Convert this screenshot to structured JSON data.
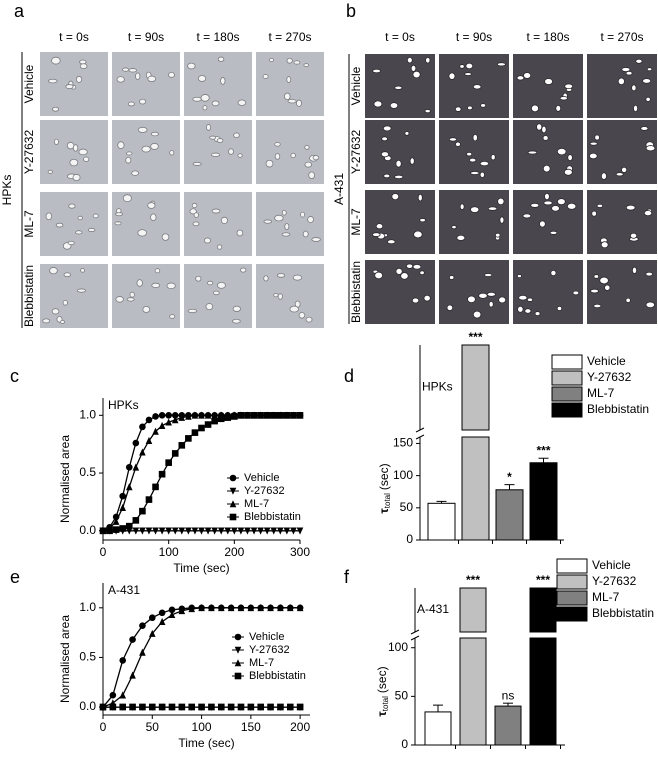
{
  "image_panels": [
    {
      "label": "a",
      "group": "HPKs",
      "columns": [
        "t = 0s",
        "t = 90s",
        "t = 180s",
        "t = 270s"
      ],
      "rows": [
        "Vehicle",
        "Y-27632",
        "ML-7",
        "Blebbistatin"
      ]
    },
    {
      "label": "b",
      "group": "A-431",
      "columns": [
        "t = 0s",
        "t = 90s",
        "t = 180s",
        "t = 270s"
      ],
      "rows": [
        "Vehicle",
        "Y-27632",
        "ML-7",
        "Blebbistatin"
      ]
    }
  ],
  "chart_data": [
    {
      "type": "line",
      "panel_label": "c",
      "title": "HPKs",
      "xlabel": "Time (sec)",
      "ylabel": "Normalised area",
      "x": [
        0,
        10,
        20,
        30,
        40,
        50,
        60,
        70,
        80,
        90,
        100,
        110,
        120,
        130,
        140,
        150,
        160,
        170,
        180,
        190,
        200,
        210,
        220,
        230,
        240,
        250,
        260,
        270,
        280,
        290,
        300
      ],
      "xlim": [
        0,
        300
      ],
      "xticks": [
        0,
        100,
        200,
        300
      ],
      "ylim": [
        -0.08,
        1.15
      ],
      "yticks": [
        {
          "value": 0,
          "label": "0.0"
        },
        {
          "value": 0.5,
          "label": "0.5"
        },
        {
          "value": 1,
          "label": "1.0"
        }
      ],
      "series": [
        {
          "name": "Vehicle",
          "marker": "circle",
          "color": "#000000",
          "values": [
            0,
            0.03,
            0.12,
            0.3,
            0.55,
            0.76,
            0.9,
            0.96,
            0.99,
            1,
            1,
            1,
            1,
            1,
            1,
            1,
            1,
            1,
            1,
            1,
            1,
            1,
            1,
            1,
            1,
            1,
            1,
            1,
            1,
            1,
            1
          ]
        },
        {
          "name": "Y-27632",
          "marker": "triangle-down",
          "color": "#000000",
          "values": [
            0,
            0,
            0,
            0,
            0,
            0,
            0,
            0,
            0,
            0,
            0,
            0,
            0,
            0,
            0,
            0,
            0,
            0,
            0,
            0,
            0,
            0,
            0,
            0,
            0,
            0,
            0,
            0,
            0,
            0,
            0
          ]
        },
        {
          "name": "ML-7",
          "marker": "triangle",
          "color": "#000000",
          "values": [
            0,
            0.02,
            0.08,
            0.2,
            0.38,
            0.55,
            0.68,
            0.78,
            0.86,
            0.91,
            0.94,
            0.96,
            0.98,
            0.99,
            1,
            1,
            1,
            1,
            1,
            1,
            1,
            1,
            1,
            1,
            1,
            1,
            1,
            1,
            1,
            1,
            1
          ]
        },
        {
          "name": "Blebbistatin",
          "marker": "square",
          "color": "#000000",
          "values": [
            0,
            0,
            0.01,
            0.02,
            0.04,
            0.09,
            0.17,
            0.27,
            0.38,
            0.49,
            0.59,
            0.67,
            0.74,
            0.8,
            0.85,
            0.89,
            0.92,
            0.95,
            0.97,
            0.98,
            0.99,
            1,
            1,
            1,
            1,
            1,
            1,
            1,
            1,
            1,
            1
          ]
        }
      ]
    },
    {
      "type": "broken-bar",
      "panel_label": "d",
      "title": "HPKs",
      "ylabel_symbol": "τ",
      "ylabel_sub": "total",
      "ylabel_unit": "(sec)",
      "categories": [
        "Vehicle",
        "Y-27632",
        "ML-7",
        "Blebbistatin"
      ],
      "colors": [
        "#ffffff",
        "#c0c0c0",
        "#808080",
        "#000000"
      ],
      "values": [
        57,
        null,
        78,
        120
      ],
      "errors": [
        3,
        null,
        8,
        7
      ],
      "significance": [
        null,
        "***",
        "*",
        "***"
      ],
      "ylim": [
        0,
        160
      ],
      "yticks": [
        0,
        50,
        100,
        150
      ]
    },
    {
      "type": "line",
      "panel_label": "e",
      "title": "A-431",
      "xlabel": "Time (sec)",
      "ylabel": "Normalised area",
      "x": [
        0,
        10,
        20,
        30,
        40,
        50,
        60,
        70,
        80,
        90,
        100,
        110,
        120,
        130,
        140,
        150,
        160,
        170,
        180,
        190,
        200
      ],
      "xlim": [
        0,
        210
      ],
      "xticks": [
        0,
        50,
        100,
        150,
        200
      ],
      "ylim": [
        -0.08,
        1.25
      ],
      "yticks": [
        {
          "value": 0,
          "label": "0.0"
        },
        {
          "value": 0.5,
          "label": "0.5"
        },
        {
          "value": 1,
          "label": "1.0"
        }
      ],
      "series": [
        {
          "name": "Vehicle",
          "marker": "circle",
          "color": "#000000",
          "values": [
            0,
            0.12,
            0.47,
            0.68,
            0.82,
            0.9,
            0.95,
            0.98,
            0.99,
            1,
            1,
            1,
            1,
            1,
            1,
            1,
            1,
            1,
            1,
            1,
            1
          ]
        },
        {
          "name": "Y-27632",
          "marker": "triangle-down",
          "color": "#000000",
          "values": [
            0,
            0,
            0,
            0,
            0,
            0,
            0,
            0,
            0,
            0,
            0,
            0,
            0,
            0,
            0,
            0,
            0,
            0,
            0,
            0,
            0
          ]
        },
        {
          "name": "ML-7",
          "marker": "triangle",
          "color": "#000000",
          "values": [
            0,
            0.04,
            0.12,
            0.32,
            0.55,
            0.74,
            0.86,
            0.93,
            0.97,
            0.99,
            1,
            1,
            1,
            1,
            1,
            1,
            1,
            1,
            1,
            1,
            1
          ]
        },
        {
          "name": "Blebbistatin",
          "marker": "square",
          "color": "#000000",
          "values": [
            0,
            0,
            0,
            0,
            0,
            0,
            0,
            0,
            0,
            0,
            0,
            0,
            0,
            0,
            0,
            0,
            0,
            0,
            0,
            0,
            0
          ]
        }
      ]
    },
    {
      "type": "broken-bar",
      "panel_label": "f",
      "title": "A-431",
      "ylabel_symbol": "τ",
      "ylabel_sub": "total",
      "ylabel_unit": "(sec)",
      "categories": [
        "Vehicle",
        "Y-27632",
        "ML-7",
        "Blebbistatin"
      ],
      "colors": [
        "#ffffff",
        "#c0c0c0",
        "#808080",
        "#000000"
      ],
      "values": [
        34,
        null,
        40,
        null
      ],
      "errors": [
        7,
        null,
        3,
        null
      ],
      "significance": [
        null,
        "***",
        "ns",
        "***"
      ],
      "ylim": [
        0,
        110
      ],
      "yticks": [
        0,
        50,
        100
      ]
    }
  ]
}
